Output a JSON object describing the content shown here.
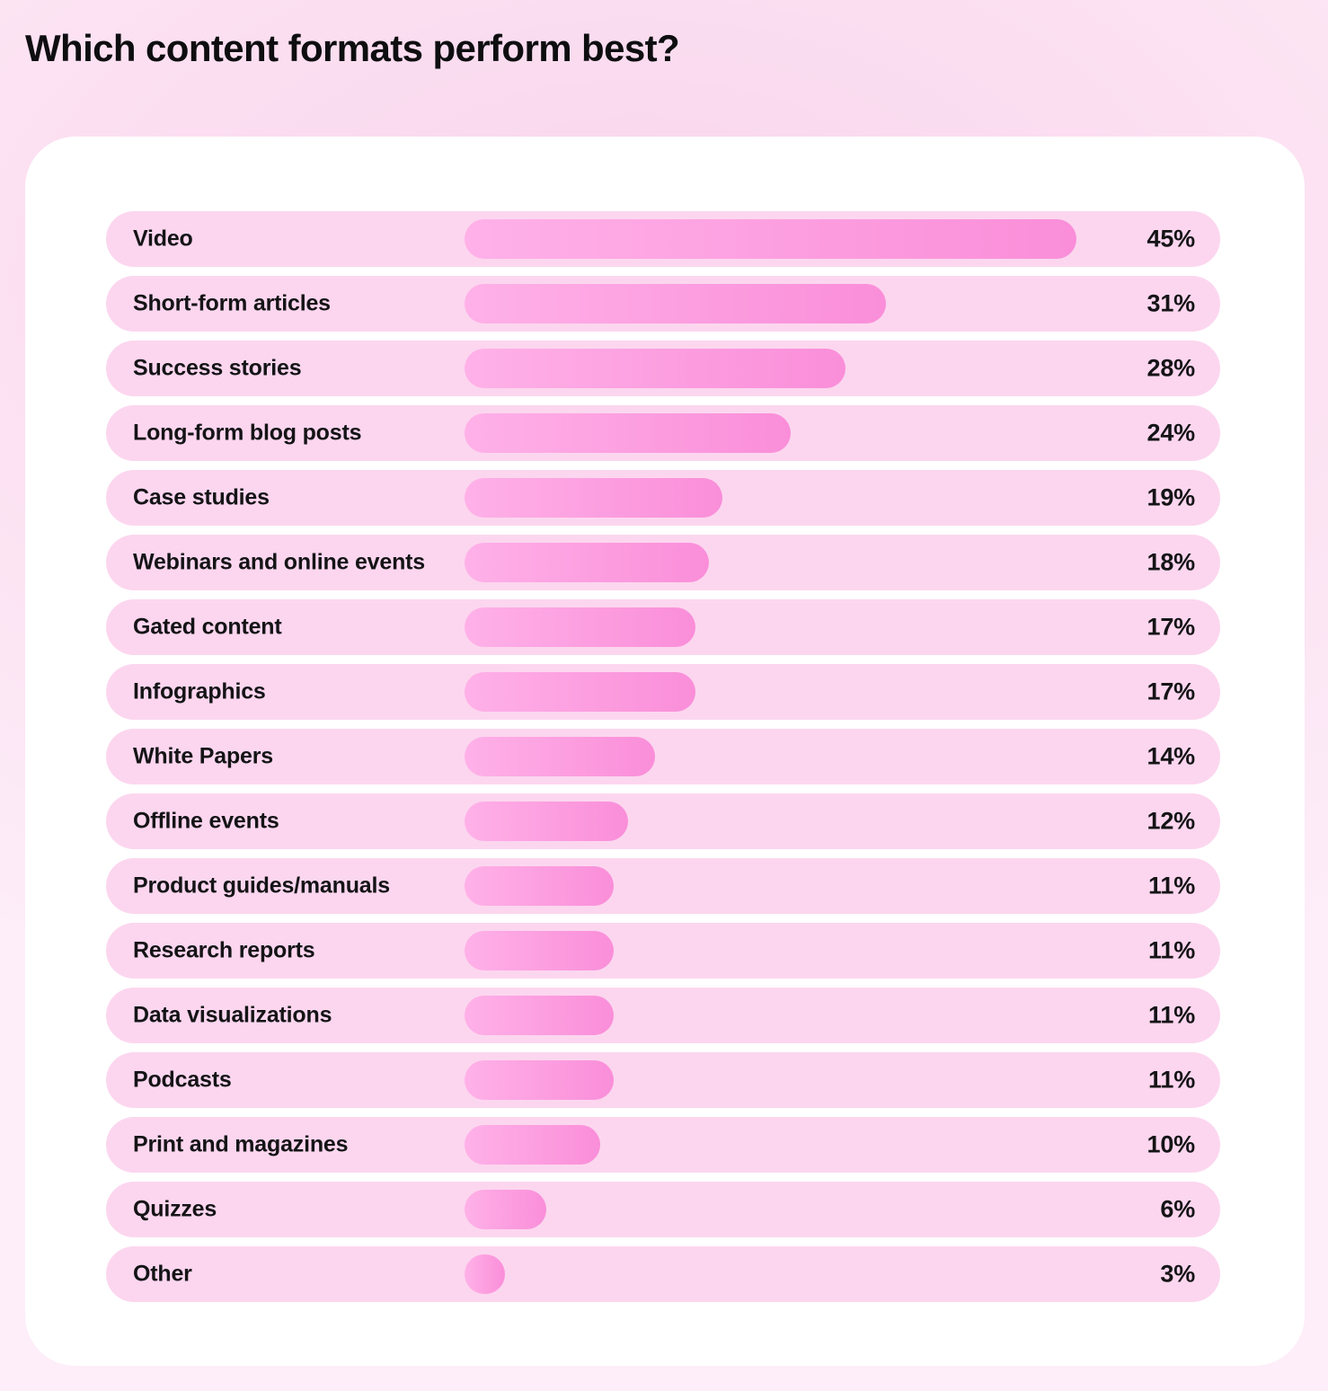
{
  "title": "Which content formats perform best?",
  "chart_data": {
    "type": "bar",
    "orientation": "horizontal",
    "title": "Which content formats perform best?",
    "unit": "%",
    "legend": "none",
    "grid": "off",
    "axis_labels": "none",
    "value_label_position": "right-aligned-in-row-pill",
    "xlim": [
      0,
      45
    ],
    "categories": [
      "Video",
      "Short-form articles",
      "Success stories",
      "Long-form blog posts",
      "Case studies",
      "Webinars and online events",
      "Gated content",
      "Infographics",
      "White Papers",
      "Offline events",
      "Product guides/manuals",
      "Research reports",
      "Data visualizations",
      "Podcasts",
      "Print and magazines",
      "Quizzes",
      "Other"
    ],
    "values": [
      45,
      31,
      28,
      24,
      19,
      18,
      17,
      17,
      14,
      12,
      11,
      11,
      11,
      11,
      10,
      6,
      3
    ],
    "value_labels": [
      "45%",
      "31%",
      "28%",
      "24%",
      "19%",
      "18%",
      "17%",
      "17%",
      "14%",
      "12%",
      "11%",
      "11%",
      "11%",
      "11%",
      "10%",
      "6%",
      "3%"
    ]
  },
  "colors": {
    "page_background_center": "#f8d4ec",
    "page_background_edge": "#fdeef9",
    "card_background": "#ffffff",
    "row_pill_background": "#fcd6ef",
    "bar_gradient_start": "#ffb1e8",
    "bar_gradient_end": "#fa8ed9",
    "text": "#141416",
    "title_text": "#0e0e10"
  }
}
